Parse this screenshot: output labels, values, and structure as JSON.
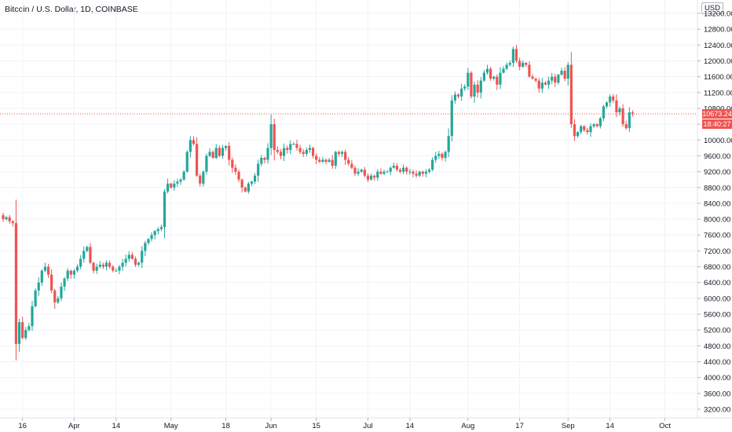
{
  "header": {
    "title": "Bitcoin / U.S. Dollar, 1D, COINBASE",
    "currency_button": "USD"
  },
  "last_price": {
    "value": "10673.24",
    "countdown": "18:40:27",
    "color": "#ef5350"
  },
  "colors": {
    "up": "#26a69a",
    "down": "#ef5350",
    "grid": "#f0f3fa"
  },
  "chart_data": {
    "type": "candlestick",
    "y_ticks": [
      "13200.00",
      "12800.00",
      "12400.00",
      "12000.00",
      "11600.00",
      "11200.00",
      "10800.00",
      "10400.00",
      "10000.00",
      "9600.00",
      "9200.00",
      "8800.00",
      "8400.00",
      "8000.00",
      "7600.00",
      "7200.00",
      "6800.00",
      "6400.00",
      "6000.00",
      "5600.00",
      "5200.00",
      "4800.00",
      "4400.00",
      "4000.00",
      "3600.00",
      "3200.00"
    ],
    "x_labels": [
      {
        "label": "16",
        "day": 6
      },
      {
        "label": "Apr",
        "day": 22
      },
      {
        "label": "14",
        "day": 35
      },
      {
        "label": "May",
        "day": 52
      },
      {
        "label": "18",
        "day": 69
      },
      {
        "label": "Jun",
        "day": 83
      },
      {
        "label": "15",
        "day": 97
      },
      {
        "label": "Jul",
        "day": 113
      },
      {
        "label": "14",
        "day": 126
      },
      {
        "label": "Aug",
        "day": 144
      },
      {
        "label": "17",
        "day": 160
      },
      {
        "label": "Sep",
        "day": 175
      },
      {
        "label": "14",
        "day": 188
      },
      {
        "label": "Oct",
        "day": 205
      }
    ],
    "ylim": [
      3000,
      13400
    ],
    "xlim": [
      0,
      210
    ],
    "closes": [
      8000,
      8050,
      7950,
      7900,
      4850,
      5400,
      5000,
      5200,
      5300,
      5800,
      6200,
      6400,
      6700,
      6800,
      6600,
      6200,
      5900,
      6000,
      6300,
      6500,
      6700,
      6600,
      6700,
      6800,
      7000,
      7200,
      7300,
      6900,
      6700,
      6800,
      6850,
      6800,
      6900,
      6800,
      6700,
      6700,
      6800,
      6900,
      7000,
      7100,
      7000,
      6850,
      6900,
      7200,
      7400,
      7500,
      7600,
      7700,
      7750,
      7800,
      8700,
      8900,
      8800,
      8900,
      8950,
      9000,
      9200,
      9700,
      10000,
      9900,
      9100,
      8900,
      9200,
      9600,
      9700,
      9550,
      9800,
      9600,
      9800,
      9850,
      9500,
      9300,
      9200,
      9000,
      8800,
      8700,
      8900,
      8950,
      9100,
      9400,
      9550,
      9500,
      9800,
      10400,
      9750,
      9700,
      9600,
      9800,
      9750,
      9900,
      9900,
      9800,
      9700,
      9650,
      9750,
      9800,
      9600,
      9500,
      9450,
      9500,
      9450,
      9500,
      9350,
      9700,
      9650,
      9700,
      9500,
      9400,
      9300,
      9150,
      9200,
      9250,
      9100,
      9000,
      9100,
      9050,
      9200,
      9150,
      9200,
      9200,
      9300,
      9350,
      9250,
      9200,
      9300,
      9200,
      9200,
      9150,
      9100,
      9200,
      9150,
      9200,
      9250,
      9500,
      9600,
      9650,
      9550,
      9700,
      10100,
      11000,
      11150,
      11100,
      11300,
      11350,
      11700,
      11100,
      11400,
      11200,
      11500,
      11700,
      11800,
      11550,
      11600,
      11400,
      11700,
      11800,
      11900,
      11950,
      12300,
      12000,
      11850,
      11950,
      11900,
      11600,
      11550,
      11500,
      11300,
      11450,
      11400,
      11500,
      11600,
      11450,
      11650,
      11750,
      11550,
      11900,
      10400,
      10100,
      10200,
      10350,
      10250,
      10200,
      10350,
      10400,
      10350,
      10550,
      10850,
      10950,
      11100,
      11000,
      10700,
      10800,
      10400,
      10300,
      10700,
      10673
    ]
  }
}
